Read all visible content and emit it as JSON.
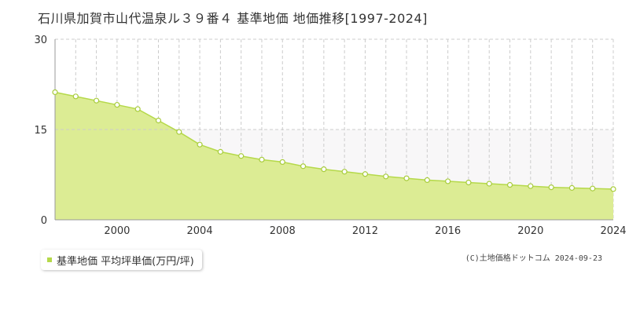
{
  "title": "石川県加賀市山代温泉ル３９番４ 基準地価 地価推移[1997-2024]",
  "legend": {
    "label": "基準地価 平均坪単価(万円/坪)"
  },
  "copyright": "(C)土地価格ドットコム 2024-09-23",
  "colors": {
    "fill": "#dcec94",
    "line": "#b5d94a",
    "marker_stroke": "#a8cc3c",
    "upper_band": "#f8f7f8",
    "grid": "#cccccc",
    "axis_text": "#333333"
  },
  "chart_data": {
    "type": "area",
    "title": "石川県加賀市山代温泉ル３９番４ 基準地価 地価推移[1997-2024]",
    "xlabel": "",
    "ylabel": "",
    "xlim": [
      1997,
      2024
    ],
    "ylim": [
      0,
      30
    ],
    "y_ticks": [
      0,
      15,
      30
    ],
    "x_ticks": [
      2000,
      2004,
      2008,
      2012,
      2016,
      2020,
      2024
    ],
    "grid": true,
    "legend_position": "bottom-left",
    "series": [
      {
        "name": "基準地価 平均坪単価(万円/坪)",
        "x": [
          1997,
          1998,
          1999,
          2000,
          2001,
          2002,
          2003,
          2004,
          2005,
          2006,
          2007,
          2008,
          2009,
          2010,
          2011,
          2012,
          2013,
          2014,
          2015,
          2016,
          2017,
          2018,
          2019,
          2020,
          2021,
          2022,
          2023,
          2024
        ],
        "values": [
          21.2,
          20.5,
          19.8,
          19.1,
          18.4,
          16.5,
          14.6,
          12.5,
          11.3,
          10.6,
          10.0,
          9.6,
          8.9,
          8.4,
          8.0,
          7.6,
          7.2,
          6.9,
          6.6,
          6.4,
          6.2,
          6.0,
          5.8,
          5.6,
          5.4,
          5.3,
          5.2,
          5.1
        ]
      }
    ]
  }
}
